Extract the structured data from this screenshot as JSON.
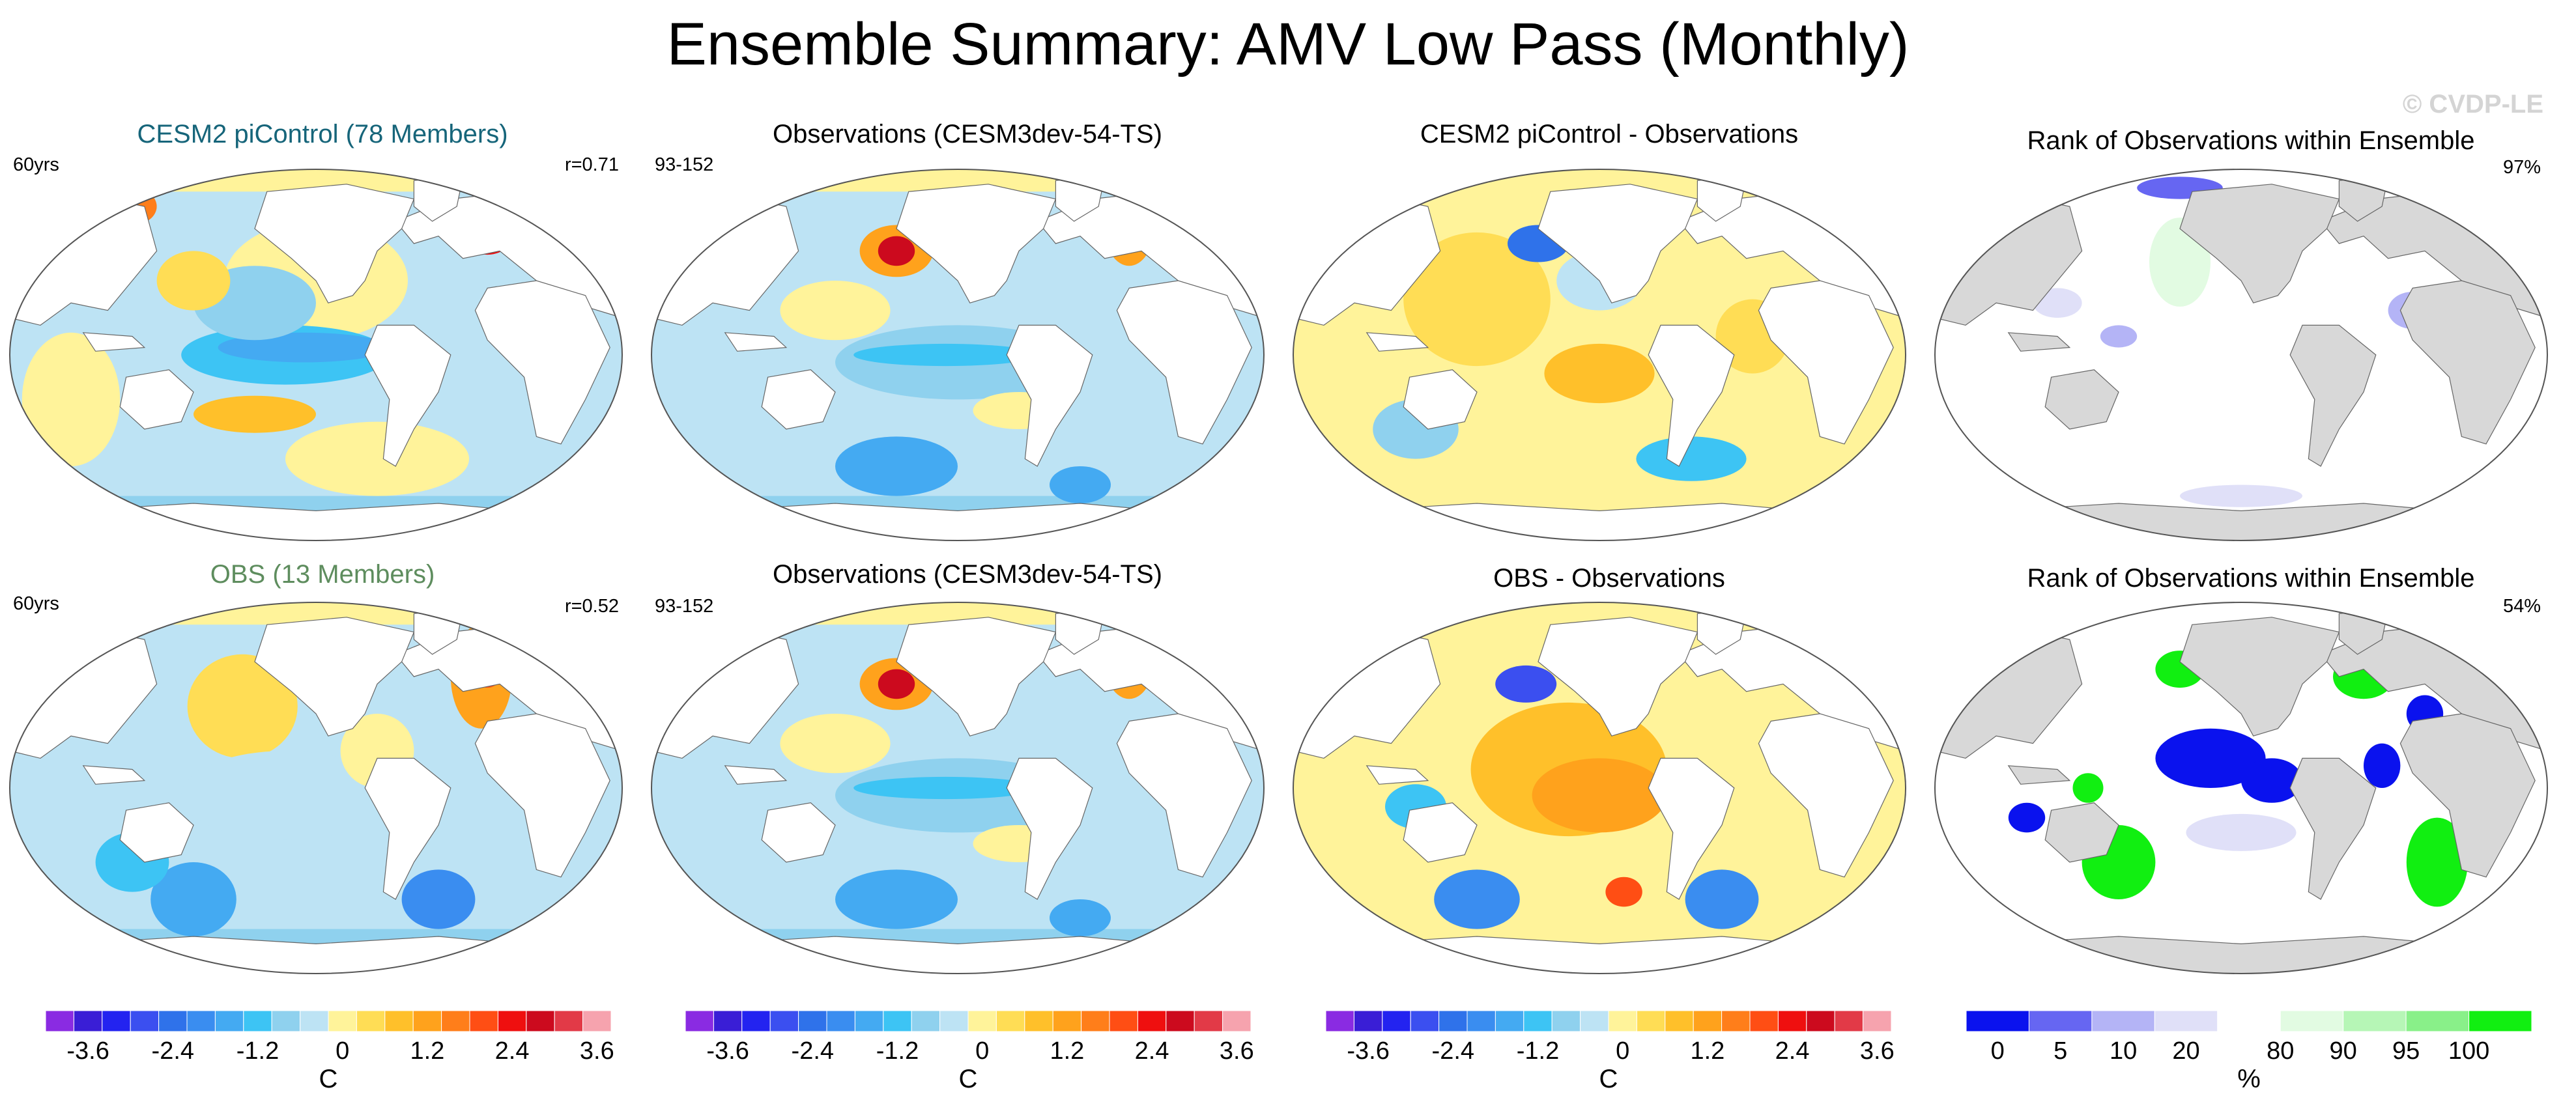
{
  "title": "Ensemble Summary: AMV Low Pass (Monthly)",
  "watermark": "© CVDP-LE",
  "colors": {
    "model_title": "#16657a",
    "obs_title": "#5e8d5e",
    "land": "#ffffff",
    "rank_land": "#d8d8d8",
    "outline": "#555555"
  },
  "panels": [
    {
      "title": "CESM2 piControl (78 Members)",
      "left_label": "60yrs",
      "right_label": "r=0.71",
      "kind": "model_ens_1"
    },
    {
      "title": "Observations (CESM3dev-54-TS)",
      "left_label": "93-152",
      "right_label": "",
      "kind": "obs"
    },
    {
      "title": "CESM2 piControl - Observations",
      "left_label": "",
      "right_label": "",
      "kind": "diff_1"
    },
    {
      "title": "Rank of Observations within Ensemble",
      "left_label": "",
      "right_label": "97%",
      "kind": "rank_1"
    },
    {
      "title": "OBS (13 Members)",
      "left_label": "60yrs",
      "right_label": "r=0.52",
      "kind": "model_ens_2"
    },
    {
      "title": "Observations (CESM3dev-54-TS)",
      "left_label": "93-152",
      "right_label": "",
      "kind": "obs"
    },
    {
      "title": "OBS - Observations",
      "left_label": "",
      "right_label": "",
      "kind": "diff_2"
    },
    {
      "title": "Rank of Observations within Ensemble",
      "left_label": "",
      "right_label": "54%",
      "kind": "rank_2"
    }
  ],
  "temperature_colorbar": {
    "colors": [
      "#8a2be2",
      "#3a1ed6",
      "#2323f0",
      "#3b4ff0",
      "#2f72ea",
      "#3a8df0",
      "#44aaf2",
      "#3dc4f4",
      "#8fd1ee",
      "#bde3f4",
      "#fff39a",
      "#ffdd55",
      "#ffc02a",
      "#ffa21c",
      "#ff7e1a",
      "#ff4e14",
      "#ef0f0f",
      "#cc0a1e",
      "#e23a47",
      "#f6a3ae"
    ],
    "ticks": [
      "-3.6",
      "-2.4",
      "-1.2",
      "0",
      "1.2",
      "2.4",
      "3.6"
    ],
    "units": "C"
  },
  "rank_colorbar": {
    "colors": [
      "#0a12ee",
      "#6666f2",
      "#b4b4f6",
      "#e0e0f8",
      "#ffffff",
      "#e2fbe2",
      "#b6f6b6",
      "#89f089",
      "#11ef11"
    ],
    "ticks": [
      "0",
      "5",
      "10",
      "20",
      "80",
      "90",
      "95",
      "100"
    ],
    "units": "%"
  }
}
